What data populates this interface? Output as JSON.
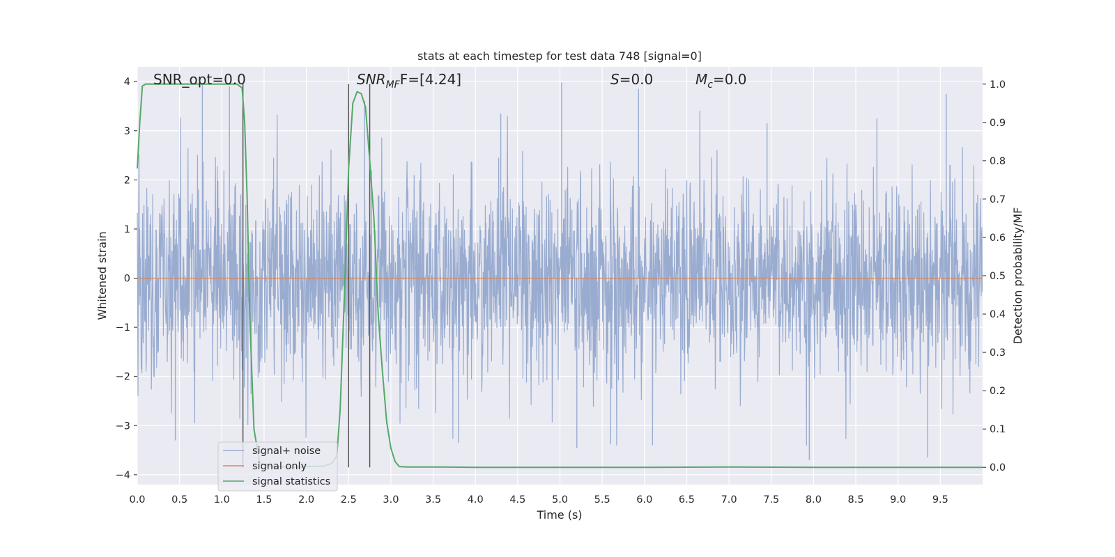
{
  "chart_data": {
    "type": "line",
    "title": "stats at each timestep for test data 748 [signal=0]",
    "xlabel": "Time (s)",
    "ylabel": "Whitened strain",
    "y2label": "Detection probability/MF",
    "xlim": [
      0.0,
      10.0
    ],
    "ylim": [
      -4.2,
      4.3
    ],
    "y2lim": [
      -0.045,
      1.045
    ],
    "x_ticks": [
      "0.0",
      "0.5",
      "1.0",
      "1.5",
      "2.0",
      "2.5",
      "3.0",
      "3.5",
      "4.0",
      "4.5",
      "5.0",
      "5.5",
      "6.0",
      "6.5",
      "7.0",
      "7.5",
      "8.0",
      "8.5",
      "9.0",
      "9.5"
    ],
    "y_ticks": [
      "4",
      "3",
      "2",
      "1",
      "0",
      "−1",
      "−2",
      "−3",
      "−4"
    ],
    "y2_ticks": [
      "1.0",
      "0.9",
      "0.8",
      "0.7",
      "0.6",
      "0.5",
      "0.4",
      "0.3",
      "0.2",
      "0.1",
      "0.0"
    ],
    "grid": true,
    "legend_placement": "lower-left",
    "annotations": {
      "snr_opt": "SNR_opt=0.0",
      "snr_mf_base": "SNR",
      "snr_mf_sub": "MF",
      "snr_mf_value": "F=[4.24]",
      "s_symbol": "S",
      "s_value": "=0.0",
      "mc_symbol": "M",
      "mc_sub": "c",
      "mc_value": "=0.0"
    },
    "series": [
      {
        "name": "signal+ noise",
        "axis": "left",
        "color": "#99acd0",
        "description_of_values": "whitened noise strain, approx. uniform spread between -2.2 and 2.2 with spikes up to 4.0 and down to -3.7",
        "spikes": [
          {
            "x": 0.77,
            "y": 3.95
          },
          {
            "x": 1.09,
            "y": 3.9
          },
          {
            "x": 5.02,
            "y": 3.98
          },
          {
            "x": 5.93,
            "y": 3.85
          },
          {
            "x": 9.57,
            "y": 3.75
          },
          {
            "x": 2.69,
            "y": 3.6
          },
          {
            "x": 4.3,
            "y": 3.35
          },
          {
            "x": 7.45,
            "y": 3.15
          },
          {
            "x": 8.75,
            "y": 3.25
          },
          {
            "x": 7.95,
            "y": -3.7
          },
          {
            "x": 9.35,
            "y": -3.65
          },
          {
            "x": 5.2,
            "y": -3.45
          },
          {
            "x": 0.45,
            "y": -3.3
          },
          {
            "x": 3.8,
            "y": -3.35
          },
          {
            "x": 5.6,
            "y": -3.38
          }
        ]
      },
      {
        "name": "signal only",
        "axis": "left",
        "color": "#dd8452",
        "x": [
          0.0,
          10.0
        ],
        "y": [
          0.0,
          0.0
        ]
      },
      {
        "name": "signal statistics",
        "axis": "right",
        "color": "#55a868",
        "x": [
          0.0,
          0.03,
          0.06,
          0.1,
          0.2,
          0.4,
          0.6,
          0.8,
          1.0,
          1.18,
          1.24,
          1.27,
          1.3,
          1.33,
          1.38,
          1.45,
          1.6,
          1.8,
          2.0,
          2.2,
          2.3,
          2.36,
          2.4,
          2.45,
          2.5,
          2.55,
          2.6,
          2.65,
          2.7,
          2.75,
          2.8,
          2.85,
          2.9,
          2.95,
          3.0,
          3.05,
          3.1,
          3.2,
          3.5,
          4.0,
          5.0,
          6.0,
          7.0,
          8.0,
          9.0,
          10.0
        ],
        "y": [
          0.78,
          0.9,
          0.995,
          1.0,
          1.0,
          1.0,
          1.0,
          1.0,
          1.0,
          1.0,
          0.99,
          0.9,
          0.7,
          0.4,
          0.1,
          0.01,
          0.002,
          0.001,
          0.002,
          0.003,
          0.01,
          0.03,
          0.15,
          0.45,
          0.78,
          0.95,
          0.98,
          0.975,
          0.94,
          0.8,
          0.65,
          0.4,
          0.25,
          0.12,
          0.05,
          0.015,
          0.002,
          0.001,
          0.001,
          0.0,
          0.0,
          0.0,
          0.001,
          0.0,
          0.0,
          0.0
        ]
      }
    ],
    "vertical_lines": [
      {
        "x": 1.25,
        "from": 0.0,
        "to": 1.0
      },
      {
        "x": 2.5,
        "from": 0.0,
        "to": 1.0
      },
      {
        "x": 2.75,
        "from": 0.0,
        "to": 1.0
      }
    ]
  }
}
